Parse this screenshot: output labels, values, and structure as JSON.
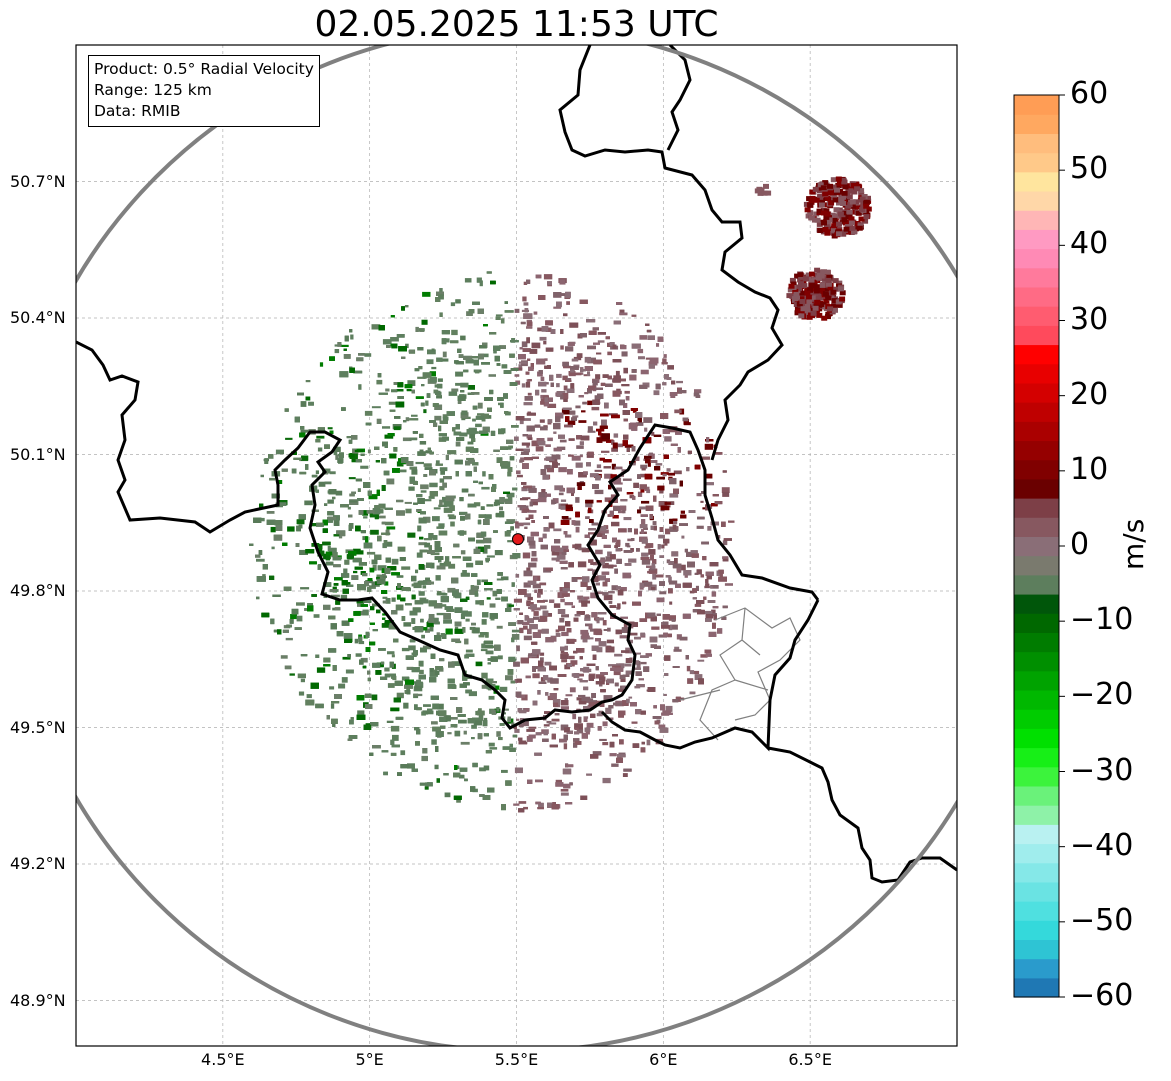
{
  "title": "02.05.2025 11:53 UTC",
  "info_box": {
    "product": "Product: 0.5° Radial Velocity",
    "range": "Range: 125 km",
    "data": "Data: RMIB"
  },
  "map": {
    "lat_labels": [
      "50.7°N",
      "50.4°N",
      "50.1°N",
      "49.8°N",
      "49.5°N",
      "49.2°N",
      "48.9°N"
    ],
    "lat_values": [
      50.7,
      50.4,
      50.1,
      49.8,
      49.5,
      49.2,
      48.9
    ],
    "lon_labels": [
      "4.5°E",
      "5°E",
      "5.5°E",
      "6°E",
      "6.5°E"
    ],
    "lon_values": [
      4.5,
      5.0,
      5.5,
      6.0,
      6.5
    ],
    "extent": {
      "lon_min": 4.0,
      "lon_max": 7.0,
      "lat_min": 48.8,
      "lat_max": 51.0
    },
    "radar_site": {
      "lon": 5.505,
      "lat": 49.914,
      "marker_color": "#e31a1c"
    },
    "range_ring_color": "#808080",
    "border_color": "#000000",
    "inner_border_color": "#808080",
    "grid": true
  },
  "colorbar": {
    "label": "m/s",
    "vmin": -60,
    "vmax": 60,
    "ticks": [
      "60",
      "50",
      "40",
      "30",
      "20",
      "10",
      "0",
      "−10",
      "−20",
      "−30",
      "−40",
      "−50",
      "−60"
    ],
    "tick_values": [
      60,
      50,
      40,
      30,
      20,
      10,
      0,
      -10,
      -20,
      -30,
      -40,
      -50,
      -60
    ],
    "colors_low_to_high": [
      "#1f78b4",
      "#2a9bcc",
      "#2ec4d4",
      "#34d9db",
      "#4fe0e0",
      "#6ae3e3",
      "#85e8e8",
      "#a0eded",
      "#b9f1f1",
      "#8ef2a8",
      "#6af27a",
      "#3cf33c",
      "#17ef17",
      "#00e000",
      "#00cc00",
      "#00b800",
      "#00a300",
      "#008f00",
      "#007c00",
      "#006800",
      "#00560a",
      "#5d7e5d",
      "#7a7a6e",
      "#8a6e77",
      "#875860",
      "#7d3f47",
      "#6a0000",
      "#800000",
      "#950000",
      "#aa0000",
      "#bf0000",
      "#d40000",
      "#e80000",
      "#ff0000",
      "#ff4a5c",
      "#ff5c70",
      "#ff6b85",
      "#ff7a9c",
      "#ff8ab5",
      "#ff9ac2",
      "#ffb6b6",
      "#ffd7a8",
      "#ffe59e",
      "#ffc989",
      "#ffbd7d",
      "#ffa860",
      "#ff9d55"
    ]
  }
}
